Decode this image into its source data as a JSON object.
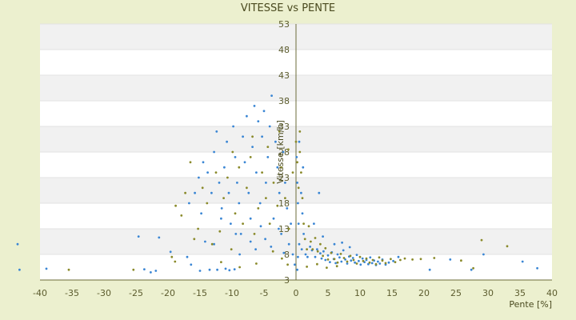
{
  "chart_data": {
    "type": "scatter",
    "title": "VITESSE vs PENTE",
    "xlabel": "Pente [%]",
    "ylabel": "Vitesse [km/h]",
    "xlim": [
      -40,
      40
    ],
    "ylim": [
      3,
      53
    ],
    "x_ticks": [
      -40,
      -35,
      -30,
      -25,
      -20,
      -15,
      -10,
      -5,
      0,
      5,
      10,
      15,
      20,
      25,
      30,
      35,
      40
    ],
    "y_ticks": [
      3,
      8,
      13,
      18,
      23,
      28,
      33,
      38,
      43,
      48,
      53
    ],
    "grid": true,
    "legend": "none",
    "colors": {
      "background": "#ecf0cf",
      "plot_band_light": "#ffffff",
      "plot_band_dark": "#f1f1f1",
      "axis": "#6b6b3a",
      "series_blue": "#3a86d4",
      "series_olive": "#8a8a2a"
    },
    "series": [
      {
        "color": "#3a86d4",
        "points": [
          [
            -43.5,
            10
          ],
          [
            -43.2,
            5
          ],
          [
            -39,
            5.2
          ],
          [
            -23.7,
            5.1
          ],
          [
            -22.7,
            4.5
          ],
          [
            -21.9,
            4.8
          ],
          [
            -21.4,
            11.3
          ],
          [
            -24.6,
            11.5
          ],
          [
            -19.6,
            8.5
          ],
          [
            -17,
            7.5
          ],
          [
            -16.4,
            6
          ],
          [
            -15,
            4.8
          ],
          [
            -13.5,
            5
          ],
          [
            -12.3,
            5
          ],
          [
            -11,
            5.2
          ],
          [
            -10.4,
            4.9
          ],
          [
            -9.6,
            5.1
          ],
          [
            -16.7,
            18
          ],
          [
            -15.8,
            20
          ],
          [
            -15.2,
            23
          ],
          [
            -14.8,
            16
          ],
          [
            -14.5,
            26
          ],
          [
            -13.8,
            24
          ],
          [
            -13.2,
            20
          ],
          [
            -12.8,
            28
          ],
          [
            -12.4,
            32
          ],
          [
            -12,
            22
          ],
          [
            -11.6,
            17
          ],
          [
            -11.2,
            25
          ],
          [
            -10.8,
            30
          ],
          [
            -10.5,
            20
          ],
          [
            -10.2,
            14
          ],
          [
            -9.8,
            33
          ],
          [
            -9.5,
            27
          ],
          [
            -9.2,
            22
          ],
          [
            -8.9,
            18
          ],
          [
            -8.6,
            12
          ],
          [
            -8.3,
            31
          ],
          [
            -8,
            26
          ],
          [
            -7.7,
            35
          ],
          [
            -7.4,
            20
          ],
          [
            -7.1,
            15
          ],
          [
            -6.8,
            29
          ],
          [
            -6.5,
            37
          ],
          [
            -6.2,
            24
          ],
          [
            -5.9,
            34
          ],
          [
            -5.6,
            18
          ],
          [
            -5.3,
            31
          ],
          [
            -5,
            36
          ],
          [
            -4.7,
            22
          ],
          [
            -4.4,
            27
          ],
          [
            -4.1,
            33
          ],
          [
            -3.8,
            39
          ],
          [
            -3.5,
            15
          ],
          [
            -3.2,
            30
          ],
          [
            -2.9,
            25
          ],
          [
            -2.6,
            20
          ],
          [
            -2.3,
            12
          ],
          [
            -2,
            28
          ],
          [
            -1.7,
            22
          ],
          [
            -1.4,
            17
          ],
          [
            -1.1,
            10
          ],
          [
            -0.8,
            14
          ],
          [
            -0.5,
            8
          ],
          [
            -0.2,
            6
          ],
          [
            -12.8,
            10
          ],
          [
            -9.4,
            12
          ],
          [
            -11.7,
            15
          ],
          [
            -14.2,
            10.5
          ],
          [
            -6.3,
            9
          ],
          [
            -4.8,
            11
          ],
          [
            -3.9,
            9.5
          ],
          [
            -2.7,
            13
          ],
          [
            -1.9,
            8.3
          ],
          [
            -8.8,
            8
          ],
          [
            -7.1,
            10.5
          ],
          [
            -5.5,
            13.5
          ],
          [
            0.1,
            27
          ],
          [
            0.2,
            22
          ],
          [
            0.3,
            18
          ],
          [
            0.4,
            14
          ],
          [
            0.5,
            10
          ],
          [
            0.3,
            7.5
          ],
          [
            0.2,
            5
          ],
          [
            0.5,
            30
          ],
          [
            0.8,
            20
          ],
          [
            1,
            16
          ],
          [
            1.2,
            12
          ],
          [
            0.9,
            9
          ],
          [
            1.5,
            8
          ],
          [
            1.8,
            7.5
          ],
          [
            1.1,
            25
          ],
          [
            2.2,
            9.5
          ],
          [
            2.5,
            8.8
          ],
          [
            3,
            7.5
          ],
          [
            3.3,
            9
          ],
          [
            3.8,
            8.2
          ],
          [
            4,
            7.2
          ],
          [
            4.3,
            8.6
          ],
          [
            4.6,
            6.9
          ],
          [
            5,
            7.8
          ],
          [
            5.3,
            6.5
          ],
          [
            5.6,
            8.4
          ],
          [
            5.9,
            7.1
          ],
          [
            6.2,
            6.3
          ],
          [
            6.5,
            8
          ],
          [
            6.8,
            7.4
          ],
          [
            7.1,
            6.6
          ],
          [
            7.4,
            8.8
          ],
          [
            7.7,
            7
          ],
          [
            8,
            6.2
          ],
          [
            8.3,
            7.6
          ],
          [
            8.6,
            6.8
          ],
          [
            8.9,
            7.3
          ],
          [
            9.2,
            6.4
          ],
          [
            9.5,
            7.9
          ],
          [
            9.8,
            6.7
          ],
          [
            10.1,
            6
          ],
          [
            10.4,
            7.2
          ],
          [
            10.7,
            6.5
          ],
          [
            11,
            6.9
          ],
          [
            11.3,
            6.1
          ],
          [
            11.6,
            7.4
          ],
          [
            11.9,
            6.3
          ],
          [
            12.2,
            6.8
          ],
          [
            12.5,
            5.9
          ],
          [
            12.8,
            6.6
          ],
          [
            13.1,
            6.2
          ],
          [
            13.5,
            7
          ],
          [
            14,
            6
          ],
          [
            14.5,
            6.4
          ],
          [
            15.2,
            6.7
          ],
          [
            16,
            7.5
          ],
          [
            3.6,
            20
          ],
          [
            2.8,
            14
          ],
          [
            4.2,
            11.5
          ],
          [
            6,
            10
          ],
          [
            7.2,
            10.3
          ],
          [
            8.4,
            9.4
          ],
          [
            20.9,
            5
          ],
          [
            27.4,
            5
          ],
          [
            29.3,
            8
          ],
          [
            35.4,
            6.6
          ],
          [
            37.7,
            5.3
          ],
          [
            24.1,
            7
          ]
        ]
      },
      {
        "color": "#8a8a2a",
        "points": [
          [
            -35.5,
            5
          ],
          [
            -25.4,
            5
          ],
          [
            -18.9,
            6.6
          ],
          [
            -19.4,
            7.5
          ],
          [
            -18.8,
            17.5
          ],
          [
            -17.9,
            15.6
          ],
          [
            -17.3,
            20
          ],
          [
            -16.5,
            26
          ],
          [
            -15.9,
            11
          ],
          [
            -15.3,
            13
          ],
          [
            -14.6,
            21
          ],
          [
            -13.9,
            18
          ],
          [
            -13.1,
            10
          ],
          [
            -12.5,
            24
          ],
          [
            -11.9,
            12.5
          ],
          [
            -11.3,
            19
          ],
          [
            -10.7,
            23
          ],
          [
            -10.1,
            9
          ],
          [
            -9.5,
            16
          ],
          [
            -8.9,
            25
          ],
          [
            -8.3,
            14
          ],
          [
            -7.7,
            21
          ],
          [
            -7.1,
            27
          ],
          [
            -6.5,
            12
          ],
          [
            -5.9,
            17
          ],
          [
            -5.3,
            24
          ],
          [
            -4.7,
            19
          ],
          [
            -4.1,
            14
          ],
          [
            -3.5,
            22
          ],
          [
            -2.9,
            17.5
          ],
          [
            -2.3,
            25
          ],
          [
            -1.7,
            19
          ],
          [
            -1.1,
            13
          ],
          [
            -0.5,
            24
          ],
          [
            0,
            30
          ],
          [
            0.2,
            26
          ],
          [
            0.4,
            21
          ],
          [
            0.6,
            28
          ],
          [
            0.8,
            24
          ],
          [
            1,
            19
          ],
          [
            1.2,
            14
          ],
          [
            1.4,
            11
          ],
          [
            1.7,
            9
          ],
          [
            2,
            13.5
          ],
          [
            2.3,
            10.5
          ],
          [
            2.6,
            9
          ],
          [
            3,
            11.2
          ],
          [
            3.4,
            8.6
          ],
          [
            3.8,
            10
          ],
          [
            4.2,
            7.7
          ],
          [
            4.6,
            9.2
          ],
          [
            5,
            7
          ],
          [
            5.5,
            8.3
          ],
          [
            6,
            7.1
          ],
          [
            6.5,
            6.4
          ],
          [
            7,
            8.1
          ],
          [
            7.5,
            7.3
          ],
          [
            8,
            6.6
          ],
          [
            8.5,
            7.7
          ],
          [
            9,
            6.9
          ],
          [
            9.5,
            6.2
          ],
          [
            10,
            7.5
          ],
          [
            10.5,
            6.7
          ],
          [
            11,
            7.2
          ],
          [
            11.5,
            6.4
          ],
          [
            12,
            6.9
          ],
          [
            12.5,
            6.1
          ],
          [
            13,
            7.4
          ],
          [
            13.5,
            6.8
          ],
          [
            14,
            6.3
          ],
          [
            14.8,
            7.1
          ],
          [
            15.5,
            6.5
          ],
          [
            16.3,
            6.9
          ],
          [
            17,
            7.2
          ],
          [
            18.2,
            7
          ],
          [
            19.5,
            7.1
          ],
          [
            21.6,
            7.3
          ],
          [
            25.8,
            6.8
          ],
          [
            27.7,
            5.3
          ],
          [
            29,
            10.8
          ],
          [
            33,
            9.6
          ],
          [
            -11.7,
            6.5
          ],
          [
            -8.8,
            5.5
          ],
          [
            -6.2,
            6.2
          ],
          [
            -3.6,
            8.6
          ],
          [
            -2.2,
            7.2
          ],
          [
            -1.3,
            6
          ],
          [
            1.7,
            5.6
          ],
          [
            3.3,
            6.1
          ],
          [
            4.8,
            5.4
          ],
          [
            6.4,
            5.7
          ],
          [
            -9.9,
            28
          ],
          [
            -6.8,
            31
          ],
          [
            -4.4,
            29
          ],
          [
            -2.6,
            32
          ],
          [
            -1.2,
            28.5
          ],
          [
            0.6,
            32
          ]
        ]
      }
    ]
  }
}
